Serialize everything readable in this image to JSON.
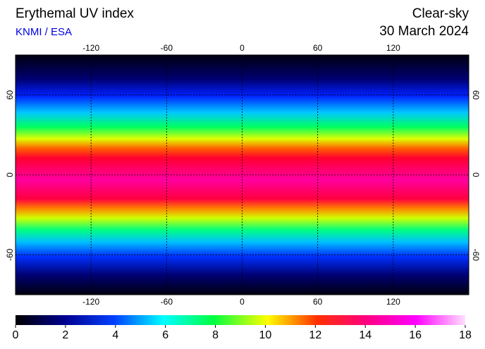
{
  "header": {
    "title": "Erythemal UV index",
    "source": "KNMI / ESA",
    "condition": "Clear-sky",
    "date": "30 March 2024"
  },
  "map": {
    "xlim": [
      -180,
      180
    ],
    "ylim": [
      -90,
      90
    ],
    "xticks": [
      -120,
      -60,
      0,
      60,
      120
    ],
    "yticks": [
      60,
      0,
      -60
    ]
  },
  "colorbar": {
    "lim": [
      0,
      18
    ],
    "ticks": [
      0,
      2,
      4,
      6,
      8,
      10,
      12,
      14,
      16,
      18
    ]
  }
}
